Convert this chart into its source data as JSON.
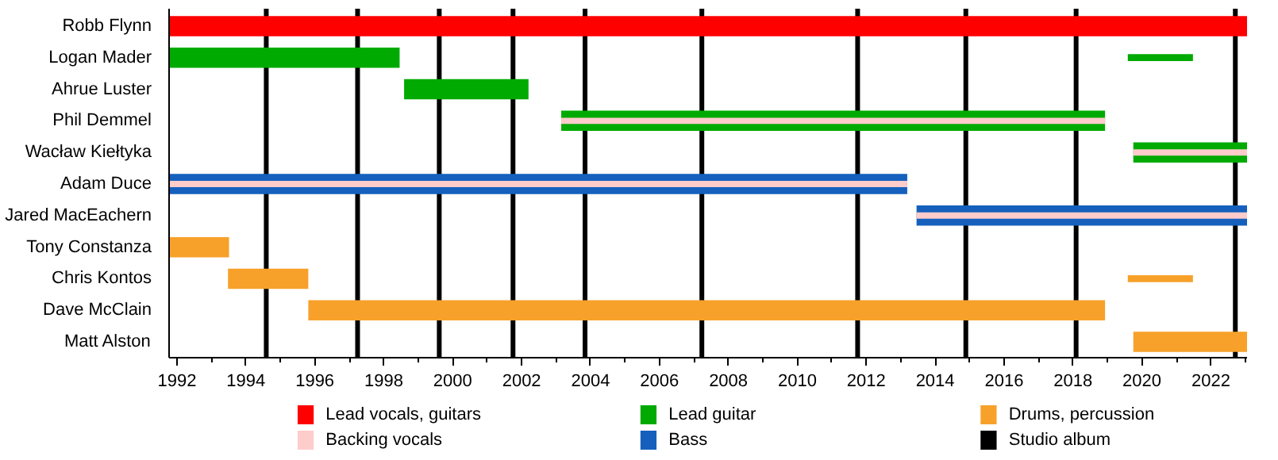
{
  "chart_data": {
    "type": "bar",
    "orientation": "horizontal",
    "categories": [
      "Robb Flynn",
      "Logan Mader",
      "Ahrue Luster",
      "Phil Demmel",
      "Wacław Kiełtyka",
      "Adam Duce",
      "Jared MacEachern",
      "Tony Constanza",
      "Chris Kontos",
      "Dave McClain",
      "Matt Alston"
    ],
    "series": [
      {
        "name": "Lead vocals, guitars",
        "color": "#ff0000",
        "base": [
          1991.77,
          null,
          null,
          null,
          null,
          null,
          null,
          null,
          null,
          null,
          null
        ],
        "values": [
          31.28,
          null,
          null,
          null,
          null,
          null,
          null,
          null,
          null,
          null,
          null
        ]
      },
      {
        "name": "Backing vocals",
        "color": "#ffcccc",
        "base": [
          null,
          null,
          null,
          2003.15,
          2019.75,
          1991.77,
          2013.46,
          null,
          null,
          null,
          null
        ],
        "values": [
          null,
          null,
          null,
          15.78,
          3.3,
          21.42,
          9.59,
          null,
          null,
          null,
          null
        ]
      },
      {
        "name": "Lead guitar",
        "color": "#00aa00",
        "base": [
          null,
          1991.77,
          1998.59,
          2003.15,
          2019.75,
          null,
          null,
          null,
          null,
          null,
          null
        ],
        "values": [
          null,
          6.69,
          3.61,
          15.78,
          3.3,
          null,
          null,
          null,
          null,
          null,
          null
        ]
      },
      {
        "name": "Bass",
        "color": "#1560bd",
        "base": [
          null,
          null,
          null,
          null,
          null,
          1991.77,
          2013.46,
          null,
          null,
          null,
          null
        ],
        "values": [
          null,
          null,
          null,
          null,
          null,
          21.42,
          9.59,
          null,
          null,
          null,
          null
        ]
      },
      {
        "name": "Drums, percussion",
        "color": "#f7a12a",
        "base": [
          null,
          null,
          null,
          null,
          null,
          null,
          null,
          1991.77,
          1993.48,
          1995.81,
          2019.75
        ],
        "values": [
          null,
          null,
          null,
          null,
          null,
          null,
          null,
          1.74,
          2.33,
          23.12,
          3.3
        ]
      },
      {
        "color": "#00aa00",
        "base": [
          null,
          2019.59,
          null,
          null,
          null,
          null,
          null,
          null,
          null,
          null,
          null
        ],
        "values": [
          null,
          1.89,
          null,
          null,
          null,
          null,
          null,
          null,
          null,
          null,
          null
        ]
      },
      {
        "color": "#f7a12a",
        "base": [
          null,
          null,
          null,
          null,
          null,
          null,
          null,
          null,
          2019.59,
          null,
          null
        ],
        "values": [
          null,
          null,
          null,
          null,
          null,
          null,
          null,
          null,
          1.89,
          null,
          null
        ]
      }
    ],
    "xlim": [
      1991.77,
      2023.05
    ],
    "xticks": [
      1992,
      1994,
      1996,
      1998,
      2000,
      2002,
      2004,
      2006,
      2008,
      2010,
      2012,
      2014,
      2016,
      2018,
      2020,
      2022
    ],
    "ref_lines": [
      {
        "axis": "x",
        "value": 1994.59,
        "label": "Studio album",
        "color": "#000000"
      },
      {
        "axis": "x",
        "value": 1997.24,
        "color": "#000000"
      },
      {
        "axis": "x",
        "value": 1999.61,
        "color": "#000000"
      },
      {
        "axis": "x",
        "value": 2001.75,
        "color": "#000000"
      },
      {
        "axis": "x",
        "value": 2003.84,
        "color": "#000000"
      },
      {
        "axis": "x",
        "value": 2007.23,
        "color": "#000000"
      },
      {
        "axis": "x",
        "value": 2011.75,
        "color": "#000000"
      },
      {
        "axis": "x",
        "value": 2014.89,
        "color": "#000000"
      },
      {
        "axis": "x",
        "value": 2018.09,
        "color": "#000000"
      },
      {
        "axis": "x",
        "value": 2022.71,
        "color": "#000000"
      }
    ],
    "grid": false,
    "legend": "bottom"
  }
}
